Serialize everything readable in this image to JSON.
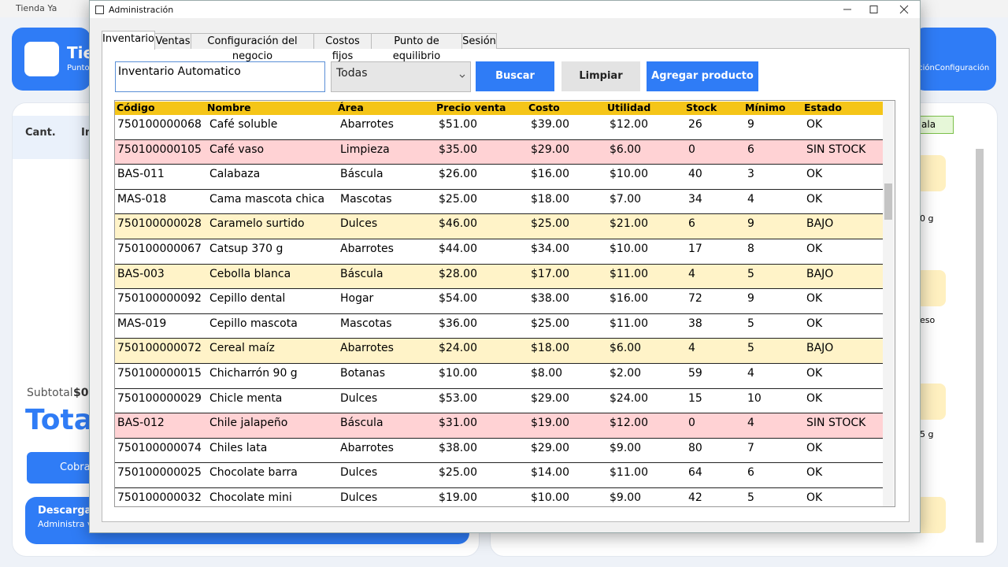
{
  "app": {
    "title": "Tienda Ya",
    "brand": "Tie",
    "brand_sub": "Punto",
    "config_label": "aciónConfiguración",
    "cart_columns": [
      "Cant.",
      "In"
    ],
    "subtotal_label": "Subtotal",
    "subtotal_value": "$0.",
    "total_label": "Total",
    "charge_button": "Cobra",
    "promo_title": "Descarga T",
    "promo_text": "Administra v",
    "side_tag": "ala",
    "side_items": [
      "0 g",
      "eso",
      "5 g"
    ]
  },
  "dialog": {
    "title": "Administración",
    "tabs": [
      "Inventario",
      "Ventas",
      "Configuración del negocio",
      "Costos fijos",
      "Punto de equilibrio",
      "Sesión"
    ],
    "search_text": "Inventario Automatico",
    "filter": "Todas",
    "buttons": [
      "Buscar",
      "Limpiar",
      "Agregar producto"
    ],
    "table": {
      "columns": [
        "Código",
        "Nombre",
        "Área",
        "Precio venta",
        "Costo",
        "Utilidad",
        "Stock",
        "Mínimo",
        "Estado"
      ],
      "rows": [
        [
          "750100000068",
          "Café soluble",
          "Abarrotes",
          "$51.00",
          "$39.00",
          "$12.00",
          "26",
          "9",
          "OK"
        ],
        [
          "750100000105",
          "Café vaso",
          "Limpieza",
          "$35.00",
          "$29.00",
          "$6.00",
          "0",
          "6",
          "SIN STOCK"
        ],
        [
          "BAS-011",
          "Calabaza",
          "Báscula",
          "$26.00",
          "$16.00",
          "$10.00",
          "40",
          "3",
          "OK"
        ],
        [
          "MAS-018",
          "Cama mascota chica",
          "Mascotas",
          "$25.00",
          "$18.00",
          "$7.00",
          "34",
          "4",
          "OK"
        ],
        [
          "750100000028",
          "Caramelo surtido",
          "Dulces",
          "$46.00",
          "$25.00",
          "$21.00",
          "6",
          "9",
          "BAJO"
        ],
        [
          "750100000067",
          "Catsup 370 g",
          "Abarrotes",
          "$44.00",
          "$34.00",
          "$10.00",
          "17",
          "8",
          "OK"
        ],
        [
          "BAS-003",
          "Cebolla blanca",
          "Báscula",
          "$28.00",
          "$17.00",
          "$11.00",
          "4",
          "5",
          "BAJO"
        ],
        [
          "750100000092",
          "Cepillo dental",
          "Hogar",
          "$54.00",
          "$38.00",
          "$16.00",
          "72",
          "9",
          "OK"
        ],
        [
          "MAS-019",
          "Cepillo mascota",
          "Mascotas",
          "$36.00",
          "$25.00",
          "$11.00",
          "38",
          "5",
          "OK"
        ],
        [
          "750100000072",
          "Cereal maíz",
          "Abarrotes",
          "$24.00",
          "$18.00",
          "$6.00",
          "4",
          "5",
          "BAJO"
        ],
        [
          "750100000015",
          "Chicharrón 90 g",
          "Botanas",
          "$10.00",
          "$8.00",
          "$2.00",
          "59",
          "4",
          "OK"
        ],
        [
          "750100000029",
          "Chicle menta",
          "Dulces",
          "$53.00",
          "$29.00",
          "$24.00",
          "15",
          "10",
          "OK"
        ],
        [
          "BAS-012",
          "Chile jalapeño",
          "Báscula",
          "$31.00",
          "$19.00",
          "$12.00",
          "0",
          "4",
          "SIN STOCK"
        ],
        [
          "750100000074",
          "Chiles lata",
          "Abarrotes",
          "$38.00",
          "$29.00",
          "$9.00",
          "80",
          "7",
          "OK"
        ],
        [
          "750100000025",
          "Chocolate barra",
          "Dulces",
          "$25.00",
          "$14.00",
          "$11.00",
          "64",
          "6",
          "OK"
        ],
        [
          "750100000032",
          "Chocolate mini",
          "Dulces",
          "$19.00",
          "$10.00",
          "$9.00",
          "42",
          "5",
          "OK"
        ]
      ],
      "row_colors": [
        "#ffffff",
        "#ffd2d4",
        "#ffffff",
        "#ffffff",
        "#fff3c8",
        "#ffffff",
        "#fff3c8",
        "#ffffff",
        "#ffffff",
        "#fff3c8",
        "#ffffff",
        "#ffffff",
        "#ffd2d4",
        "#ffffff",
        "#ffffff",
        "#ffffff"
      ]
    }
  }
}
